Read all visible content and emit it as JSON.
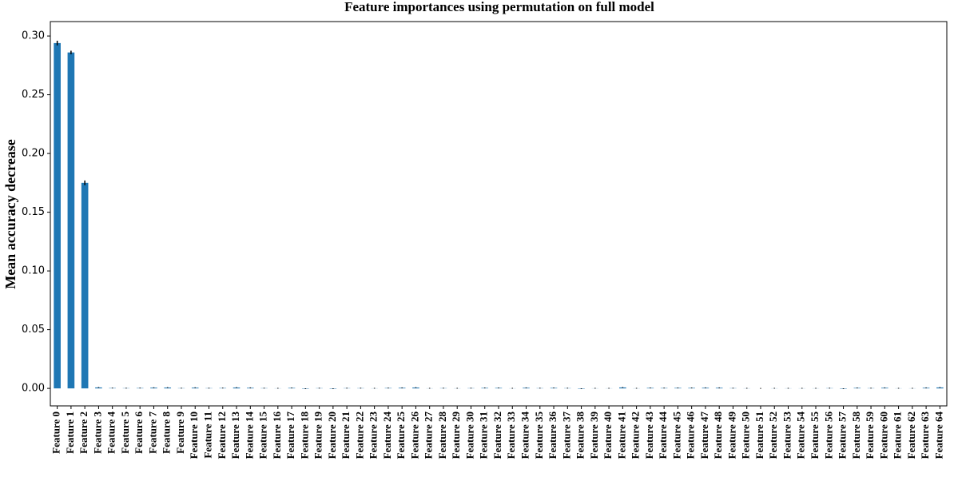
{
  "chart_data": {
    "type": "bar",
    "title": "Feature importances using permutation on full model",
    "y_label": "Mean accuracy decrease",
    "categories": [
      "Feature 0",
      "Feature 1",
      "Feature 2",
      "Feature 3",
      "Feature 4",
      "Feature 5",
      "Feature 6",
      "Feature 7",
      "Feature 8",
      "Feature 9",
      "Feature 10",
      "Feature 11",
      "Feature 12",
      "Feature 13",
      "Feature 14",
      "Feature 15",
      "Feature 16",
      "Feature 17",
      "Feature 18",
      "Feature 19",
      "Feature 20",
      "Feature 21",
      "Feature 22",
      "Feature 23",
      "Feature 24",
      "Feature 25",
      "Feature 26",
      "Feature 27",
      "Feature 28",
      "Feature 29",
      "Feature 30",
      "Feature 31",
      "Feature 32",
      "Feature 33",
      "Feature 34",
      "Feature 35",
      "Feature 36",
      "Feature 37",
      "Feature 38",
      "Feature 39",
      "Feature 40",
      "Feature 41",
      "Feature 42",
      "Feature 43",
      "Feature 44",
      "Feature 45",
      "Feature 46",
      "Feature 47",
      "Feature 48",
      "Feature 49",
      "Feature 50",
      "Feature 51",
      "Feature 52",
      "Feature 53",
      "Feature 54",
      "Feature 55",
      "Feature 56",
      "Feature 57",
      "Feature 58",
      "Feature 59",
      "Feature 60",
      "Feature 61",
      "Feature 62",
      "Feature 63",
      "Feature 64"
    ],
    "values": [
      0.294,
      0.286,
      0.175,
      0.0008,
      0.0003,
      0.0002,
      0.0003,
      0.0006,
      0.0007,
      0.0002,
      0.0006,
      0.0002,
      0.0003,
      0.0007,
      0.0005,
      0.0002,
      0.0001,
      0.0004,
      -0.0003,
      0.0002,
      -0.0003,
      0.0002,
      0.0002,
      0.0001,
      0.0003,
      0.0005,
      0.0007,
      0.0001,
      0.0002,
      0.0001,
      0.0002,
      0.0004,
      0.0004,
      0.0001,
      0.0005,
      0.0002,
      0.0004,
      0.0002,
      -0.0003,
      0.0001,
      0.0001,
      0.0008,
      0.0001,
      0.0004,
      0.0003,
      0.0004,
      0.0004,
      0.0005,
      0.0005,
      0.0002,
      0.0001,
      0,
      0.0001,
      0.0001,
      0.0001,
      0.0001,
      0.0002,
      -0.0003,
      0.0004,
      0.0002,
      0.0005,
      0.0001,
      0.0001,
      0.0005,
      0.0008
    ],
    "errors": [
      0.002,
      0.0015,
      0.002,
      0.0003,
      0.0003,
      0.0003,
      0.0003,
      0.0003,
      0.0003,
      0.0003,
      0.0003,
      0.0003,
      0.0003,
      0.0003,
      0.0003,
      0.0003,
      0.0003,
      0.0003,
      0.0003,
      0.0003,
      0.0003,
      0.0003,
      0.0003,
      0.0003,
      0.0003,
      0.0003,
      0.0003,
      0.0003,
      0.0003,
      0.0003,
      0.0003,
      0.0003,
      0.0003,
      0.0003,
      0.0003,
      0.0003,
      0.0003,
      0.0003,
      0.0003,
      0.0003,
      0.0003,
      0.0003,
      0.0003,
      0.0003,
      0.0003,
      0.0003,
      0.0003,
      0.0003,
      0.0003,
      0.0003,
      0.0003,
      0.0003,
      0.0003,
      0.0003,
      0.0003,
      0.0003,
      0.0003,
      0.0003,
      0.0003,
      0.0003,
      0.0003,
      0.0003,
      0.0003,
      0.0003,
      0.0003
    ],
    "color": "#1f77b4",
    "error_color": "#000000",
    "ylim": [
      -0.0149,
      0.3123
    ],
    "yticks": [
      {
        "value": 0,
        "label": "0.00"
      },
      {
        "value": 0.05,
        "label": "0.05"
      },
      {
        "value": 0.1,
        "label": "0.10"
      },
      {
        "value": 0.15,
        "label": "0.15"
      },
      {
        "value": 0.2,
        "label": "0.20"
      },
      {
        "value": 0.25,
        "label": "0.25"
      },
      {
        "value": 0.3,
        "label": "0.30"
      }
    ],
    "grid": false
  }
}
